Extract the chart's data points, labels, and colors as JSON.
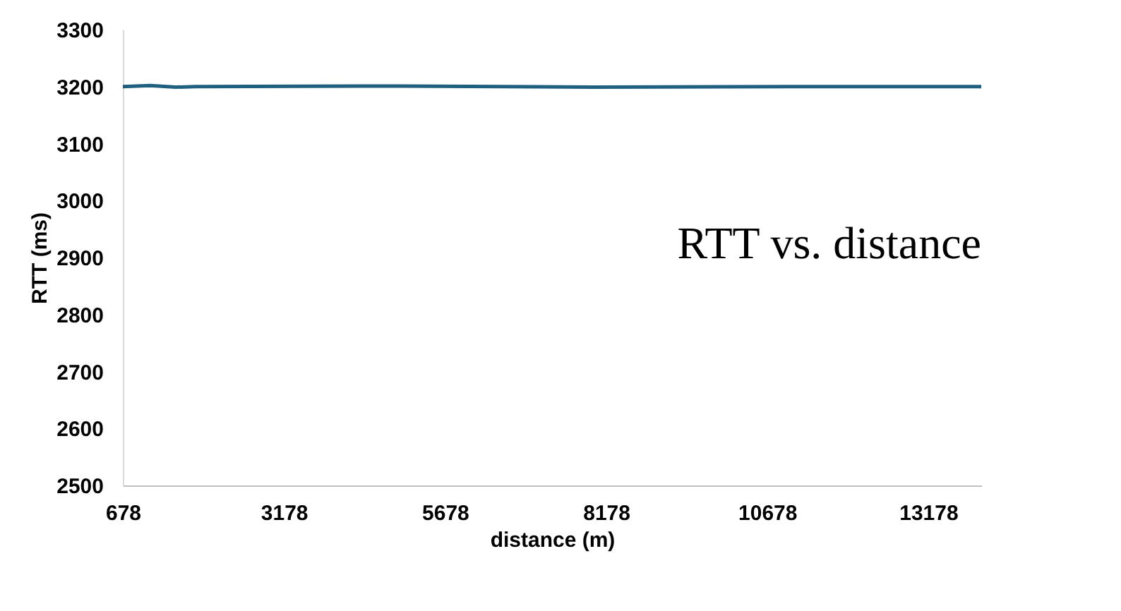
{
  "chart_data": {
    "type": "line",
    "title": "RTT vs. distance",
    "xlabel": "distance (m)",
    "ylabel": "RTT (ms)",
    "x": [
      678,
      1100,
      1500,
      1800,
      5000,
      8000,
      11000,
      14000
    ],
    "series": [
      {
        "color": "#1f5f7f",
        "values": [
          3200,
          3202,
          3199,
          3200,
          3201,
          3199,
          3200,
          3200
        ]
      }
    ],
    "xlim": [
      678,
      14000
    ],
    "xticks": [
      678,
      3178,
      5678,
      8178,
      10678,
      13178
    ],
    "ylim": [
      2500,
      3300
    ],
    "yticks": [
      2500,
      2600,
      2700,
      2800,
      2900,
      3000,
      3100,
      3200,
      3300
    ],
    "grid": false,
    "marker": "none",
    "line_style": "solid"
  }
}
